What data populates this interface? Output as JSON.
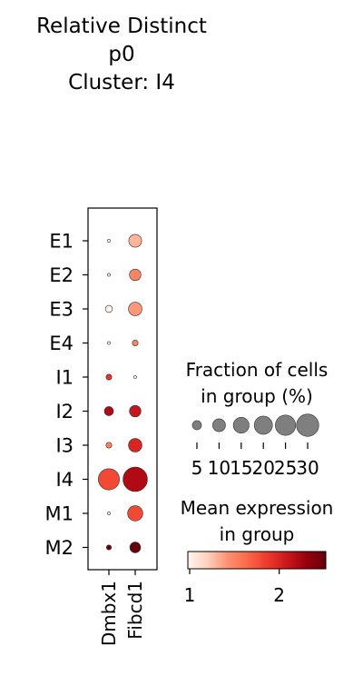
{
  "chart_data": {
    "type": "dotplot",
    "title": [
      "Relative Distinct",
      "p0",
      "Cluster: I4"
    ],
    "groups": [
      "E1",
      "E2",
      "E3",
      "E4",
      "I1",
      "I2",
      "I3",
      "I4",
      "M1",
      "M2"
    ],
    "genes": [
      "Dmbx1",
      "Fibcd1"
    ],
    "fraction_pct": [
      [
        0.5,
        10
      ],
      [
        0.5,
        8
      ],
      [
        3,
        11
      ],
      [
        0.5,
        2
      ],
      [
        2,
        0.5
      ],
      [
        5,
        8
      ],
      [
        2,
        11
      ],
      [
        27,
        36
      ],
      [
        0.5,
        14
      ],
      [
        1.5,
        7
      ]
    ],
    "mean_expression": [
      [
        1,
        1.3
      ],
      [
        1,
        1.5
      ],
      [
        1,
        1.4
      ],
      [
        1,
        1.5
      ],
      [
        1.9,
        1.0
      ],
      [
        2.2,
        2.1
      ],
      [
        1.5,
        2.0
      ],
      [
        1.8,
        2.2
      ],
      [
        1,
        1.8
      ],
      [
        2.6,
        2.6
      ]
    ],
    "size_legend": {
      "title": [
        "Fraction of cells",
        "in group (%)"
      ],
      "values": [
        5,
        10,
        15,
        20,
        25,
        30
      ]
    },
    "color_legend": {
      "title": [
        "Mean expression",
        "in group"
      ],
      "range": [
        0.98,
        2.52
      ],
      "ticks": [
        1,
        2
      ],
      "colormap": [
        "#fff5f0",
        "#fdd0bc",
        "#fc9272",
        "#fb6a4a",
        "#ef3b2c",
        "#cb181d",
        "#99000d",
        "#67000d"
      ]
    }
  }
}
